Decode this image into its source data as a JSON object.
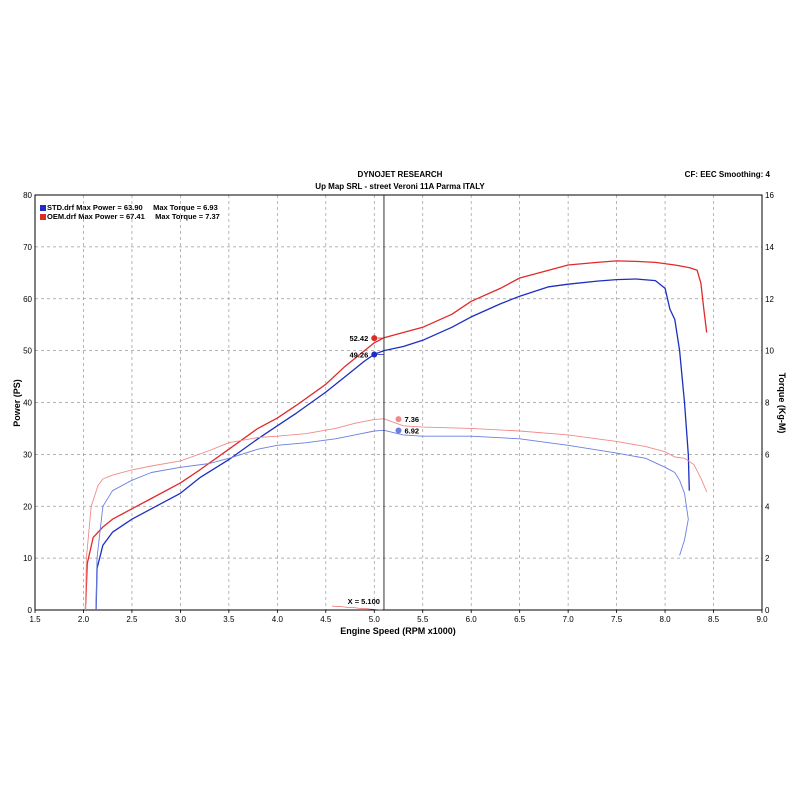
{
  "header": {
    "title": "DYNOJET RESEARCH",
    "subtitle": "Up Map SRL - street Veroni 11A Parma ITALY",
    "corner": "CF: EEC  Smoothing: 4"
  },
  "legend": [
    {
      "text": "STD.drf Max Power = 63.90     Max Torque = 6.93",
      "color": "#1c2fbf"
    },
    {
      "text": "OEM.drf Max Power = 67.41     Max Torque = 7.37",
      "color": "#e02a2a"
    }
  ],
  "chart_data": {
    "type": "line",
    "title": "DYNOJET RESEARCH",
    "subtitle": "Up Map SRL - street Veroni 11A Parma ITALY",
    "xlabel": "Engine Speed (RPM x1000)",
    "ylabel": "Power (PS)",
    "y2label": "Torque (Kg-M)",
    "xlim": [
      1.5,
      9.0
    ],
    "ylim": [
      0,
      80
    ],
    "y2lim": [
      0,
      16
    ],
    "x_ticks": [
      "1.5",
      "2.0",
      "2.5",
      "3.0",
      "3.5",
      "4.0",
      "4.5",
      "5.0",
      "5.5",
      "6.0",
      "6.5",
      "7.0",
      "7.5",
      "8.0",
      "8.5",
      "9.0"
    ],
    "y_ticks": [
      "0",
      "10",
      "20",
      "30",
      "40",
      "50",
      "60",
      "70",
      "80"
    ],
    "y2_ticks": [
      "0",
      "2",
      "4",
      "6",
      "8",
      "10",
      "12",
      "14",
      "16"
    ],
    "grid": true,
    "cursor": {
      "x": 5.1,
      "label": "X = 5.100"
    },
    "series": [
      {
        "name": "OEM.drf",
        "measure": "Power",
        "axis": "left",
        "color": "#e02a2a",
        "width": 1.3,
        "points": [
          [
            2.02,
            0
          ],
          [
            2.04,
            9
          ],
          [
            2.1,
            14
          ],
          [
            2.2,
            16
          ],
          [
            2.3,
            17.5
          ],
          [
            2.5,
            19.5
          ],
          [
            2.7,
            21.5
          ],
          [
            3.0,
            24.5
          ],
          [
            3.2,
            27
          ],
          [
            3.5,
            31
          ],
          [
            3.8,
            35
          ],
          [
            4.0,
            37
          ],
          [
            4.2,
            39.5
          ],
          [
            4.5,
            43.5
          ],
          [
            4.7,
            47
          ],
          [
            4.9,
            50
          ],
          [
            5.0,
            51.5
          ],
          [
            5.1,
            52.5
          ],
          [
            5.3,
            53.5
          ],
          [
            5.5,
            54.5
          ],
          [
            5.8,
            57
          ],
          [
            6.0,
            59.5
          ],
          [
            6.3,
            62
          ],
          [
            6.5,
            64
          ],
          [
            6.8,
            65.5
          ],
          [
            7.0,
            66.5
          ],
          [
            7.3,
            67
          ],
          [
            7.5,
            67.3
          ],
          [
            7.7,
            67.2
          ],
          [
            7.9,
            67
          ],
          [
            8.1,
            66.5
          ],
          [
            8.25,
            66
          ],
          [
            8.33,
            65.5
          ],
          [
            8.37,
            63
          ],
          [
            8.4,
            58
          ],
          [
            8.43,
            53.5
          ]
        ]
      },
      {
        "name": "STD.drf",
        "measure": "Power",
        "axis": "left",
        "color": "#1c2fbf",
        "width": 1.3,
        "points": [
          [
            2.13,
            0
          ],
          [
            2.14,
            8
          ],
          [
            2.2,
            12.5
          ],
          [
            2.3,
            15
          ],
          [
            2.5,
            17.5
          ],
          [
            2.7,
            19.5
          ],
          [
            3.0,
            22.5
          ],
          [
            3.2,
            25.5
          ],
          [
            3.5,
            29
          ],
          [
            3.8,
            33
          ],
          [
            4.0,
            35.5
          ],
          [
            4.2,
            38
          ],
          [
            4.5,
            42
          ],
          [
            4.7,
            45
          ],
          [
            4.9,
            48
          ],
          [
            5.0,
            49.3
          ],
          [
            5.1,
            50
          ],
          [
            5.3,
            50.8
          ],
          [
            5.5,
            52
          ],
          [
            5.8,
            54.5
          ],
          [
            6.0,
            56.5
          ],
          [
            6.3,
            59
          ],
          [
            6.5,
            60.5
          ],
          [
            6.8,
            62.3
          ],
          [
            7.0,
            62.8
          ],
          [
            7.3,
            63.4
          ],
          [
            7.5,
            63.7
          ],
          [
            7.7,
            63.8
          ],
          [
            7.9,
            63.5
          ],
          [
            8.0,
            62
          ],
          [
            8.05,
            58
          ],
          [
            8.1,
            56
          ],
          [
            8.15,
            50
          ],
          [
            8.2,
            40
          ],
          [
            8.24,
            30
          ],
          [
            8.25,
            23
          ]
        ]
      },
      {
        "name": "OEM.drf",
        "measure": "Torque",
        "axis": "right",
        "color": "#f08a8a",
        "width": 0.9,
        "points": [
          [
            2.02,
            0
          ],
          [
            2.03,
            2
          ],
          [
            2.08,
            4
          ],
          [
            2.15,
            4.8
          ],
          [
            2.2,
            5.05
          ],
          [
            2.3,
            5.2
          ],
          [
            2.5,
            5.4
          ],
          [
            2.7,
            5.55
          ],
          [
            3.0,
            5.75
          ],
          [
            3.3,
            6.15
          ],
          [
            3.5,
            6.45
          ],
          [
            3.8,
            6.65
          ],
          [
            4.0,
            6.7
          ],
          [
            4.3,
            6.8
          ],
          [
            4.6,
            7.0
          ],
          [
            4.8,
            7.2
          ],
          [
            5.0,
            7.35
          ],
          [
            5.1,
            7.37
          ],
          [
            5.3,
            7.1
          ],
          [
            5.5,
            7.05
          ],
          [
            6.0,
            7.0
          ],
          [
            6.5,
            6.9
          ],
          [
            7.0,
            6.75
          ],
          [
            7.5,
            6.5
          ],
          [
            7.8,
            6.3
          ],
          [
            8.0,
            6.1
          ],
          [
            8.1,
            5.9
          ],
          [
            8.2,
            5.85
          ],
          [
            8.3,
            5.6
          ],
          [
            8.38,
            5.0
          ],
          [
            8.43,
            4.55
          ]
        ]
      },
      {
        "name": "STD.drf",
        "measure": "Torque",
        "axis": "right",
        "color": "#6b7fe0",
        "width": 0.9,
        "points": [
          [
            2.13,
            0
          ],
          [
            2.14,
            2
          ],
          [
            2.2,
            4
          ],
          [
            2.3,
            4.6
          ],
          [
            2.5,
            5.0
          ],
          [
            2.7,
            5.3
          ],
          [
            3.0,
            5.5
          ],
          [
            3.3,
            5.65
          ],
          [
            3.5,
            5.85
          ],
          [
            3.8,
            6.2
          ],
          [
            4.0,
            6.35
          ],
          [
            4.3,
            6.45
          ],
          [
            4.6,
            6.6
          ],
          [
            4.8,
            6.75
          ],
          [
            5.0,
            6.9
          ],
          [
            5.1,
            6.93
          ],
          [
            5.3,
            6.75
          ],
          [
            5.5,
            6.7
          ],
          [
            6.0,
            6.7
          ],
          [
            6.5,
            6.6
          ],
          [
            7.0,
            6.35
          ],
          [
            7.5,
            6.05
          ],
          [
            7.8,
            5.85
          ],
          [
            8.0,
            5.5
          ],
          [
            8.1,
            5.3
          ],
          [
            8.15,
            5.0
          ],
          [
            8.2,
            4.5
          ],
          [
            8.24,
            3.5
          ],
          [
            8.2,
            2.7
          ],
          [
            8.15,
            2.1
          ]
        ]
      }
    ],
    "markers": [
      {
        "series": "OEM.drf Power",
        "x": 5.0,
        "y": 52.42,
        "label": "52.42",
        "axis": "left",
        "color": "#e02a2a",
        "side": "left"
      },
      {
        "series": "STD.drf Power",
        "x": 5.0,
        "y": 49.26,
        "label": "49.26",
        "axis": "left",
        "color": "#1c2fbf",
        "side": "left"
      },
      {
        "series": "OEM.drf Torque",
        "x": 5.25,
        "y": 7.36,
        "label": "7.36",
        "axis": "right",
        "color": "#f08a8a",
        "side": "right"
      },
      {
        "series": "STD.drf Torque",
        "x": 5.25,
        "y": 6.92,
        "label": "6.92",
        "axis": "right",
        "color": "#6b7fe0",
        "side": "right"
      }
    ]
  }
}
